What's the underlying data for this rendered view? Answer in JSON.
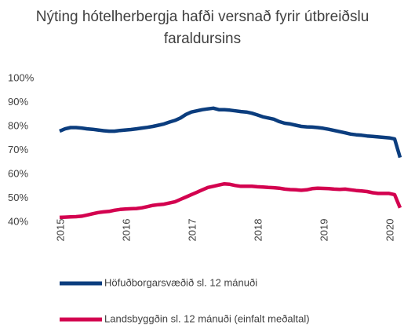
{
  "chart_data": {
    "type": "line",
    "title": "Nýting hótelherbergja hafði versnað fyrir útbreiðslu faraldursins",
    "categories": [
      "2015",
      null,
      null,
      null,
      null,
      null,
      null,
      null,
      null,
      null,
      null,
      null,
      "2016",
      null,
      null,
      null,
      null,
      null,
      null,
      null,
      null,
      null,
      null,
      null,
      "2017",
      null,
      null,
      null,
      null,
      null,
      null,
      null,
      null,
      null,
      null,
      null,
      "2018",
      null,
      null,
      null,
      null,
      null,
      null,
      null,
      null,
      null,
      null,
      null,
      "2019",
      null,
      null,
      null,
      null,
      null,
      null,
      null,
      null,
      null,
      null,
      null,
      "2020",
      null,
      null
    ],
    "series": [
      {
        "name": "Höfuðborgarsvæðið sl. 12 mánuði",
        "color": "#0b3d7e",
        "values": [
          78,
          79,
          79.5,
          79.5,
          79.3,
          79,
          78.8,
          78.5,
          78.2,
          78,
          78,
          78.3,
          78.5,
          78.7,
          79,
          79.3,
          79.6,
          80,
          80.5,
          81,
          81.8,
          82.5,
          83.5,
          85,
          86,
          86.5,
          87,
          87.3,
          87.6,
          87,
          87,
          86.8,
          86.5,
          86.2,
          86,
          85.5,
          84.8,
          84,
          83.5,
          83,
          82,
          81.3,
          81,
          80.5,
          80,
          79.8,
          79.7,
          79.5,
          79.2,
          78.8,
          78.3,
          77.8,
          77.3,
          76.8,
          76.5,
          76.3,
          76,
          75.8,
          75.6,
          75.4,
          75.2,
          74.8,
          67
        ]
      },
      {
        "name": "Landsbyggðin sl. 12 mánuði (einfalt meðaltal)",
        "color": "#d3024f",
        "values": [
          42,
          42.1,
          42.2,
          42.3,
          42.5,
          43,
          43.5,
          44,
          44.3,
          44.5,
          45,
          45.3,
          45.5,
          45.6,
          45.7,
          46,
          46.5,
          47,
          47.3,
          47.5,
          48,
          48.5,
          49.5,
          50.5,
          51.5,
          52.5,
          53.5,
          54.5,
          55,
          55.5,
          56,
          55.8,
          55.3,
          55,
          55,
          55,
          54.8,
          54.7,
          54.5,
          54.4,
          54.2,
          53.8,
          53.6,
          53.5,
          53.3,
          53.5,
          54,
          54.2,
          54.1,
          54,
          53.8,
          53.7,
          53.8,
          53.5,
          53.2,
          53,
          52.8,
          52.3,
          52,
          52,
          52,
          51.5,
          46
        ]
      }
    ],
    "ylim": [
      40,
      100
    ],
    "yticks": [
      {
        "value": 40,
        "label": "40%"
      },
      {
        "value": 50,
        "label": "50%"
      },
      {
        "value": 60,
        "label": "60%"
      },
      {
        "value": 70,
        "label": "70%"
      },
      {
        "value": 80,
        "label": "80%"
      },
      {
        "value": 90,
        "label": "90%"
      },
      {
        "value": 100,
        "label": "100%"
      }
    ]
  }
}
